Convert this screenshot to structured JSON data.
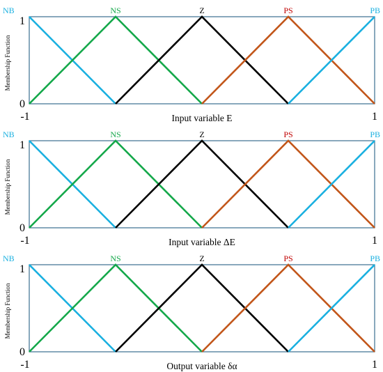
{
  "colors": {
    "NB": "#1ab0e0",
    "NS": "#14a84a",
    "Z": "#000000",
    "PS": "#c2561a",
    "PB": "#1ab0e0",
    "frame": "#3a6e8f",
    "ps_label": "#c00000"
  },
  "chart_data": [
    {
      "type": "line",
      "ylabel": "Membership  Function",
      "xlabel": "Input variable E",
      "xlim": [
        -1,
        1
      ],
      "ylim": [
        0,
        1
      ],
      "x_tick_labels": [
        "-1",
        "1"
      ],
      "y_tick_labels": [
        "0",
        "1"
      ],
      "series": [
        {
          "name": "NB",
          "x": [
            -1,
            -0.5
          ],
          "y": [
            1,
            0
          ]
        },
        {
          "name": "NS",
          "x": [
            -1,
            -0.5,
            0
          ],
          "y": [
            0,
            1,
            0
          ]
        },
        {
          "name": "Z",
          "x": [
            -0.5,
            0,
            0.5
          ],
          "y": [
            0,
            1,
            0
          ]
        },
        {
          "name": "PS",
          "x": [
            0,
            0.5,
            1
          ],
          "y": [
            0,
            1,
            0
          ]
        },
        {
          "name": "PB",
          "x": [
            0.5,
            1
          ],
          "y": [
            0,
            1
          ]
        }
      ]
    },
    {
      "type": "line",
      "ylabel": "Membership  Function",
      "xlabel": "Input variable ΔE",
      "xlim": [
        -1,
        1
      ],
      "ylim": [
        0,
        1
      ],
      "x_tick_labels": [
        "-1",
        "1"
      ],
      "y_tick_labels": [
        "0",
        "1"
      ],
      "series": [
        {
          "name": "NB",
          "x": [
            -1,
            -0.5
          ],
          "y": [
            1,
            0
          ]
        },
        {
          "name": "NS",
          "x": [
            -1,
            -0.5,
            0
          ],
          "y": [
            0,
            1,
            0
          ]
        },
        {
          "name": "Z",
          "x": [
            -0.5,
            0,
            0.5
          ],
          "y": [
            0,
            1,
            0
          ]
        },
        {
          "name": "PS",
          "x": [
            0,
            0.5,
            1
          ],
          "y": [
            0,
            1,
            0
          ]
        },
        {
          "name": "PB",
          "x": [
            0.5,
            1
          ],
          "y": [
            0,
            1
          ]
        }
      ]
    },
    {
      "type": "line",
      "ylabel": "Membership  Function",
      "xlabel": "Output variable  δα",
      "xlim": [
        -1,
        1
      ],
      "ylim": [
        0,
        1
      ],
      "x_tick_labels": [
        "-1",
        "1"
      ],
      "y_tick_labels": [
        "0",
        "1"
      ],
      "series": [
        {
          "name": "NB",
          "x": [
            -1,
            -0.5
          ],
          "y": [
            1,
            0
          ]
        },
        {
          "name": "NS",
          "x": [
            -1,
            -0.5,
            0
          ],
          "y": [
            0,
            1,
            0
          ]
        },
        {
          "name": "Z",
          "x": [
            -0.5,
            0,
            0.5
          ],
          "y": [
            0,
            1,
            0
          ]
        },
        {
          "name": "PS",
          "x": [
            0,
            0.5,
            1
          ],
          "y": [
            0,
            1,
            0
          ]
        },
        {
          "name": "PB",
          "x": [
            0.5,
            1
          ],
          "y": [
            0,
            1
          ]
        }
      ]
    }
  ]
}
